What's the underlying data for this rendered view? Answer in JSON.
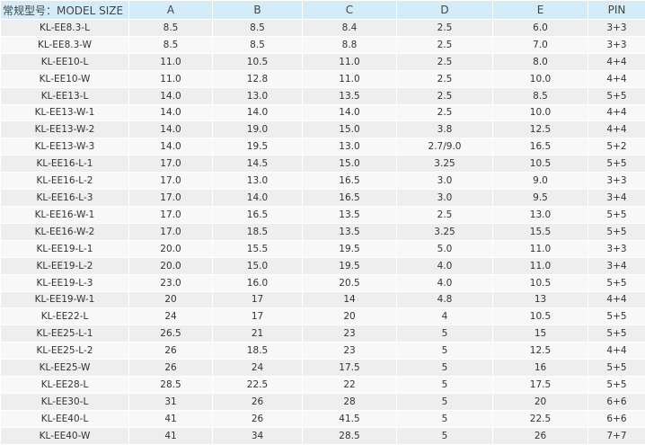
{
  "table": {
    "header": [
      "常规型号：MODEL SIZE",
      "A",
      "B",
      "C",
      "D",
      "E",
      "PIN"
    ],
    "rows": [
      [
        "KL-EE8.3-L",
        "8.5",
        "8.5",
        "8.4",
        "2.5",
        "6.0",
        "3+3"
      ],
      [
        "KL-EE8.3-W",
        "8.5",
        "8.5",
        "8.8",
        "2.5",
        "7.0",
        "3+3"
      ],
      [
        "KL-EE10-L",
        "11.0",
        "10.5",
        "11.0",
        "2.5",
        "8.0",
        "4+4"
      ],
      [
        "KL-EE10-W",
        "11.0",
        "12.8",
        "11.0",
        "2.5",
        "10.0",
        "4+4"
      ],
      [
        "KL-EE13-L",
        "14.0",
        "13.0",
        "13.5",
        "2.5",
        "8.5",
        "5+5"
      ],
      [
        "KL-EE13-W-1",
        "14.0",
        "14.0",
        "14.0",
        "2.5",
        "10.0",
        "4+4"
      ],
      [
        "KL-EE13-W-2",
        "14.0",
        "19.0",
        "15.0",
        "3.8",
        "12.5",
        "4+4"
      ],
      [
        "KL-EE13-W-3",
        "14.0",
        "19.5",
        "13.0",
        "2.7/9.0",
        "16.5",
        "5+2"
      ],
      [
        "KL-EE16-L-1",
        "17.0",
        "14.5",
        "15.0",
        "3.25",
        "10.5",
        "5+5"
      ],
      [
        "KL-EE16-L-2",
        "17.0",
        "13.0",
        "16.5",
        "3.0",
        "9.0",
        "3+3"
      ],
      [
        "KL-EE16-L-3",
        "17.0",
        "14.0",
        "16.5",
        "3.0",
        "9.5",
        "3+4"
      ],
      [
        "KL-EE16-W-1",
        "17.0",
        "16.5",
        "13.5",
        "2.5",
        "13.0",
        "5+5"
      ],
      [
        "KL-EE16-W-2",
        "17.0",
        "18.5",
        "13.5",
        "3.25",
        "15.5",
        "5+5"
      ],
      [
        "KL-EE19-L-1",
        "20.0",
        "15.5",
        "19.5",
        "5.0",
        "11.0",
        "3+3"
      ],
      [
        "KL-EE19-L-2",
        "20.0",
        "15.0",
        "19.5",
        "4.0",
        "11.0",
        "3+4"
      ],
      [
        "KL-EE19-L-3",
        "23.0",
        "16.0",
        "20.5",
        "4.0",
        "10.5",
        "5+5"
      ],
      [
        "KL-EE19-W-1",
        "20",
        "17",
        "14",
        "4.8",
        "13",
        "4+4"
      ],
      [
        "KL-EE22-L",
        "24",
        "17",
        "20",
        "4",
        "10.5",
        "5+5"
      ],
      [
        "KL-EE25-L-1",
        "26.5",
        "21",
        "23",
        "5",
        "15",
        "5+5"
      ],
      [
        "KL-EE25-L-2",
        "26",
        "18.5",
        "23",
        "5",
        "12.5",
        "4+4"
      ],
      [
        "KL-EE25-W",
        "26",
        "24",
        "17.5",
        "5",
        "16",
        "5+5"
      ],
      [
        "KL-EE28-L",
        "28.5",
        "22.5",
        "22",
        "5",
        "17.5",
        "5+5"
      ],
      [
        "KL-EE30-L",
        "31",
        "26",
        "28",
        "5",
        "20",
        "6+6"
      ],
      [
        "KL-EE40-L",
        "41",
        "26",
        "41.5",
        "5",
        "22.5",
        "6+6"
      ],
      [
        "KL-EE40-W",
        "41",
        "34",
        "28.5",
        "5",
        "26",
        "7+7"
      ]
    ]
  }
}
